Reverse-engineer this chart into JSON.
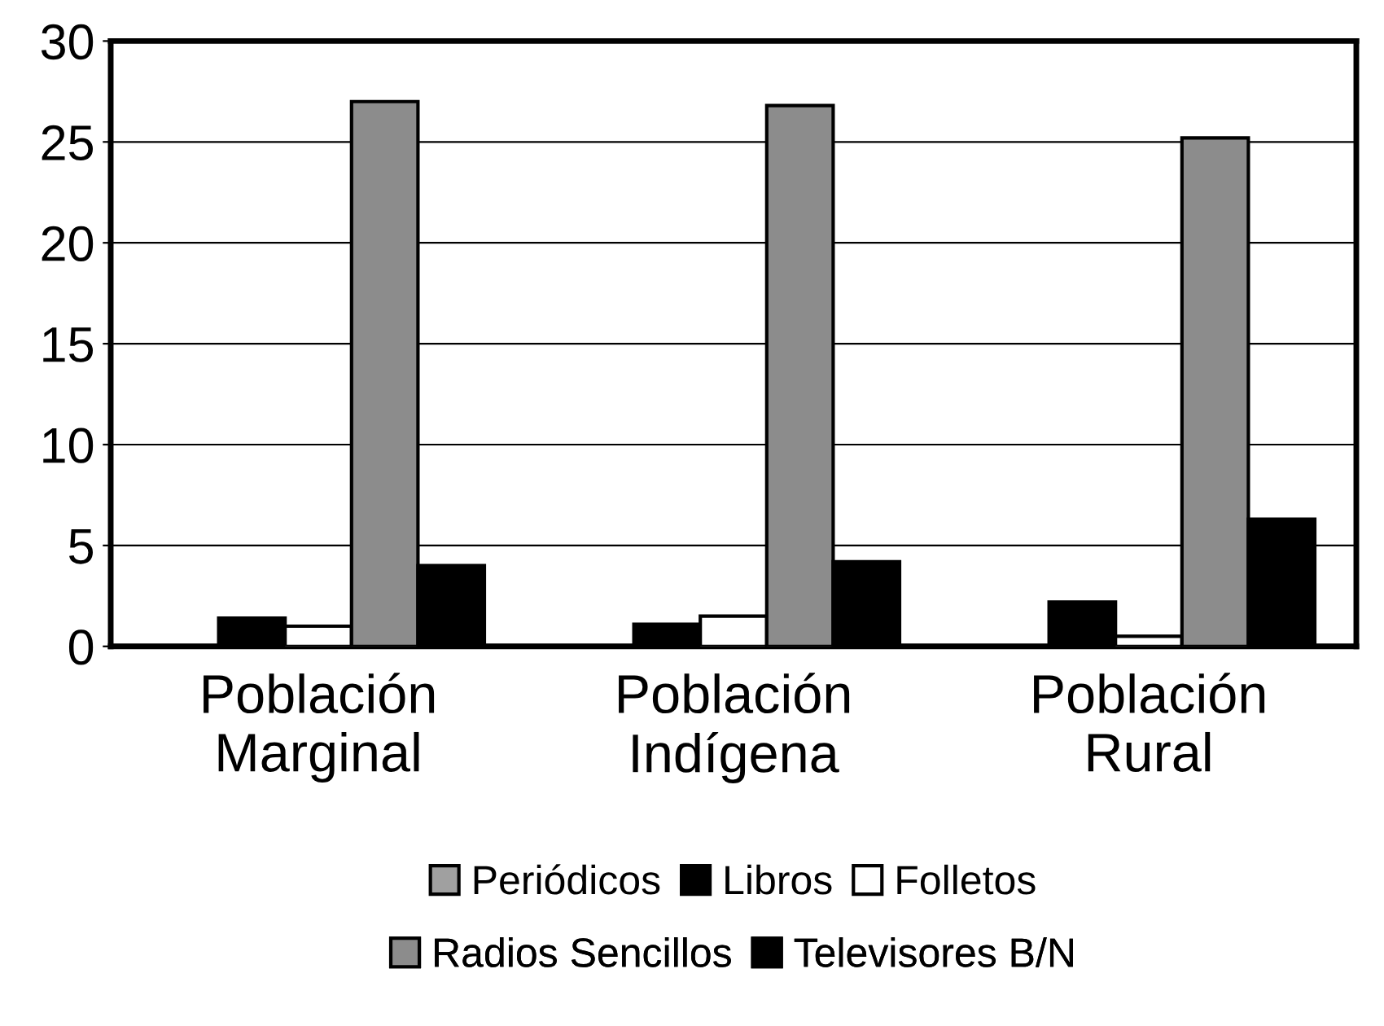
{
  "chart_data": {
    "type": "bar",
    "categories": [
      "Población\nMarginal",
      "Población\nIndígena",
      "Población\nRural"
    ],
    "series": [
      {
        "name": "Periódicos",
        "color": "#a0a0a0",
        "values": [
          0,
          0,
          0
        ]
      },
      {
        "name": "Libros",
        "color": "#000000",
        "values": [
          1.4,
          1.1,
          2.2
        ]
      },
      {
        "name": "Folletos",
        "color": "#ffffff",
        "values": [
          1.0,
          1.5,
          0.5
        ]
      },
      {
        "name": "Radios Sencillos",
        "color": "#8c8c8c",
        "values": [
          27,
          26.8,
          25.2
        ]
      },
      {
        "name": "Televisores B/N",
        "color": "#000000",
        "values": [
          4.0,
          4.2,
          6.3
        ]
      }
    ],
    "ylim": [
      0,
      30
    ],
    "yticks": [
      0,
      5,
      10,
      15,
      20,
      25,
      30
    ],
    "grid": "y",
    "legend": "bottom"
  }
}
